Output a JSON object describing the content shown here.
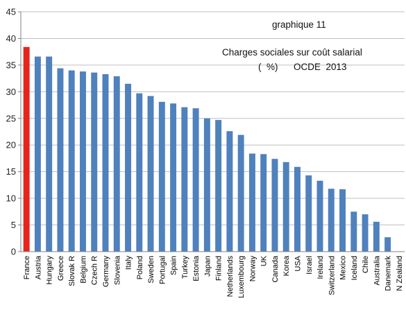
{
  "chart_data": {
    "type": "bar",
    "categories": [
      "France",
      "Austria",
      "Hungary",
      "Greece",
      "Slovak R",
      "Belgium",
      "Czech R",
      "Germany",
      "Slovenia",
      "Italy",
      "Poland",
      "Sweden",
      "Portugal",
      "Spain",
      "Turkey",
      "Estonia",
      "Japan",
      "Finland",
      "Netherlands",
      "Luxembourg",
      "Norway",
      "UK",
      "Canada",
      "Korea",
      "USA",
      "Israel",
      "Ireland",
      "Switzerland",
      "Mexico",
      "Iceland",
      "Chile",
      "Australia",
      "Danemark",
      "N Zealand"
    ],
    "values": [
      38.4,
      36.6,
      36.6,
      34.4,
      34.0,
      33.8,
      33.6,
      33.3,
      32.9,
      31.5,
      29.7,
      29.2,
      28.1,
      27.8,
      27.1,
      26.9,
      25.0,
      24.7,
      22.6,
      21.9,
      18.4,
      18.3,
      17.4,
      16.8,
      15.9,
      14.3,
      13.3,
      11.8,
      11.7,
      7.5,
      7.0,
      5.6,
      2.7,
      0
    ],
    "highlight_category": "France",
    "colors": {
      "default_bar": "#4f81bd",
      "highlight_bar": "#e8231a",
      "grid": "#bfbfbf",
      "axis": "#808080"
    },
    "ylim": [
      0,
      45
    ],
    "yticks": [
      0,
      5,
      10,
      15,
      20,
      25,
      30,
      35,
      40,
      45
    ],
    "grid": true,
    "legend": "none",
    "annotations": {
      "graph_number": "graphique 11",
      "title_line1": "Charges sociales sur coût salarial",
      "title_line2": "(  %)      OCDE  2013"
    }
  }
}
